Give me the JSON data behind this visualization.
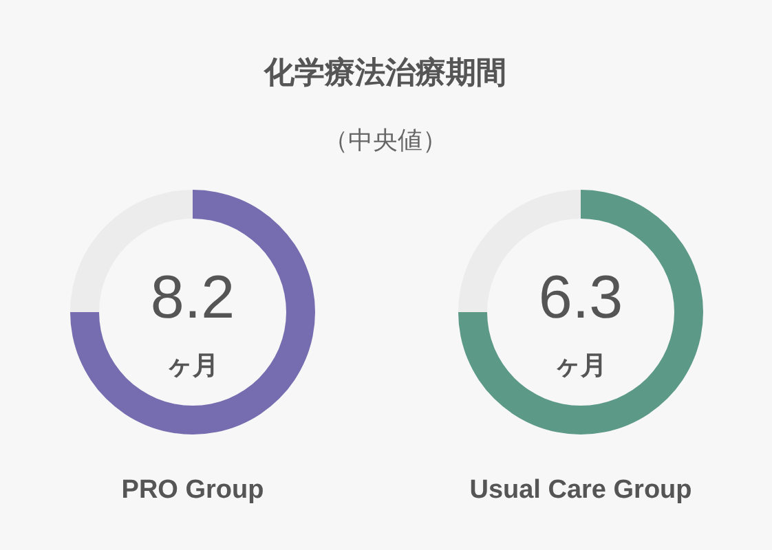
{
  "chart_data": [
    {
      "type": "other",
      "title": "化学療法治療期間",
      "subtitle": "（中央値）"
    },
    {
      "type": "donut",
      "categories": [
        null,
        null
      ],
      "values": [
        75,
        25
      ],
      "colors": [
        "#766db0",
        "#ececec"
      ],
      "annotations": [
        "8.2",
        "ヶ月"
      ],
      "xlabel": "PRO Group"
    },
    {
      "type": "donut",
      "categories": [
        null,
        null
      ],
      "values": [
        75,
        25
      ],
      "colors": [
        "#5c9987",
        "#ececec"
      ],
      "annotations": [
        "6.3",
        "ヶ月"
      ],
      "xlabel": "Usual Care Group"
    }
  ]
}
